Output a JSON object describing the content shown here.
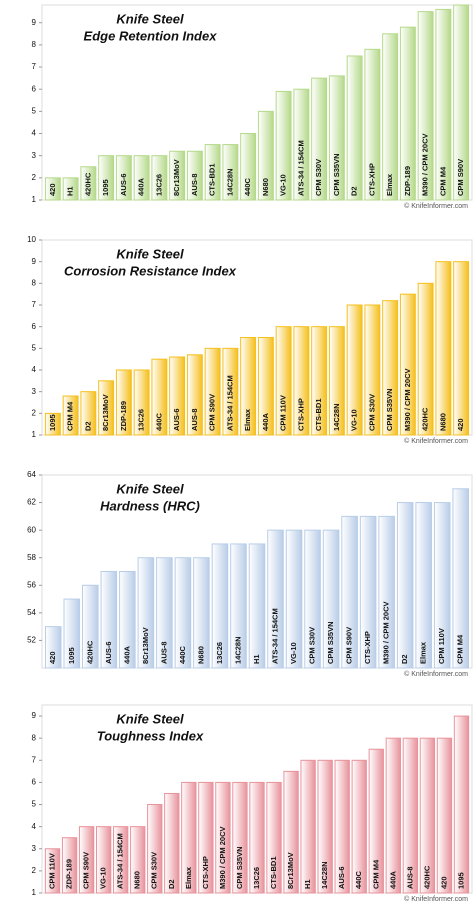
{
  "chart_data": [
    {
      "type": "bar",
      "title": "Knife Steel",
      "subtitle": "Edge Retention Index",
      "source": "© KnifeInformer.com",
      "color": "#b5d98a",
      "categories": [
        "420",
        "H1",
        "420HC",
        "1095",
        "AUS-6",
        "440A",
        "13C26",
        "8Cr13MoV",
        "AUS-8",
        "CTS-BD1",
        "14C28N",
        "440C",
        "N680",
        "VG-10",
        "ATS-34 / 154CM",
        "CPM S30V",
        "CPM S35VN",
        "D2",
        "CTS-XHP",
        "Elmax",
        "ZDP-189",
        "M390 / CPM 20CV",
        "CPM M4",
        "CPM S90V"
      ],
      "values": [
        2,
        2,
        2.5,
        3,
        3,
        3,
        3,
        3.2,
        3.2,
        3.5,
        3.5,
        4,
        5,
        5.9,
        6,
        6.5,
        6.6,
        7.5,
        7.8,
        8.5,
        8.8,
        9.5,
        9.6,
        9.8
      ],
      "ylim": [
        1,
        9.8
      ],
      "yticks": [
        1,
        2,
        3,
        4,
        5,
        6,
        7,
        8,
        9
      ]
    },
    {
      "type": "bar",
      "title": "Knife Steel",
      "subtitle": "Corrosion Resistance Index",
      "source": "© KnifeInformer.com",
      "color": "#f5bf1c",
      "categories": [
        "1095",
        "CPM M4",
        "D2",
        "8Cr13MoV",
        "ZDP-189",
        "13C26",
        "440C",
        "AUS-6",
        "AUS-8",
        "CPM S90V",
        "ATS-34 / 154CM",
        "Elmax",
        "440A",
        "CPM 110V",
        "CTS-XHP",
        "CTS-BD1",
        "14C28N",
        "VG-10",
        "CPM S30V",
        "CPM S35VN",
        "M390 / CPM 20CV",
        "420HC",
        "N680",
        "420"
      ],
      "values": [
        2,
        2.8,
        3,
        3.5,
        4,
        4,
        4.5,
        4.6,
        4.7,
        5,
        5,
        5.5,
        5.5,
        6,
        6,
        6,
        6,
        7,
        7,
        7.2,
        7.5,
        8,
        9,
        9
      ],
      "ylim": [
        1,
        10
      ],
      "yticks": [
        1,
        2,
        3,
        4,
        5,
        6,
        7,
        8,
        9,
        10
      ]
    },
    {
      "type": "bar",
      "title": "Knife Steel",
      "subtitle": "Hardness (HRC)",
      "source": "© KnifeInformer.com",
      "color": "#b9cde8",
      "categories": [
        "420",
        "1095",
        "420HC",
        "AUS-6",
        "440A",
        "8Cr13MoV",
        "AUS-8",
        "440C",
        "N680",
        "13C26",
        "14C28N",
        "H1",
        "ATS-34 / 154CM",
        "VG-10",
        "CPM S30V",
        "CPM S35VN",
        "CPM S90V",
        "CTS-XHP",
        "M390 / CPM 20CV",
        "D2",
        "Elmax",
        "CPM 110V",
        "CPM M4"
      ],
      "values": [
        53,
        55,
        56,
        57,
        57,
        58,
        58,
        58,
        58,
        59,
        59,
        59,
        60,
        60,
        60,
        60,
        61,
        61,
        61,
        62,
        62,
        62,
        63
      ],
      "ylim": [
        50,
        64
      ],
      "yticks": [
        52,
        54,
        56,
        58,
        60,
        62,
        64
      ]
    },
    {
      "type": "bar",
      "title": "Knife Steel",
      "subtitle": "Toughness Index",
      "source": "© KnifeInformer.com",
      "color": "#e8939c",
      "categories": [
        "CPM 110V",
        "ZDP-189",
        "CPM S90V",
        "VG-10",
        "ATS-34 / 154CM",
        "N680",
        "CPM S30V",
        "D2",
        "Elmax",
        "CTS-XHP",
        "M390 / CPM 20CV",
        "CPM S35VN",
        "13C26",
        "CTS-BD1",
        "8Cr13MoV",
        "H1",
        "14C28N",
        "AUS-6",
        "440C",
        "CPM M4",
        "440A",
        "AUS-8",
        "420HC",
        "420",
        "1095"
      ],
      "values": [
        3,
        3.5,
        4,
        4,
        4,
        4,
        5,
        5.5,
        6,
        6,
        6,
        6,
        6,
        6,
        6.5,
        7,
        7,
        7,
        7,
        7.5,
        8,
        8,
        8,
        8,
        9
      ],
      "ylim": [
        1,
        9.5
      ],
      "yticks": [
        1,
        2,
        3,
        4,
        5,
        6,
        7,
        8,
        9
      ]
    }
  ]
}
